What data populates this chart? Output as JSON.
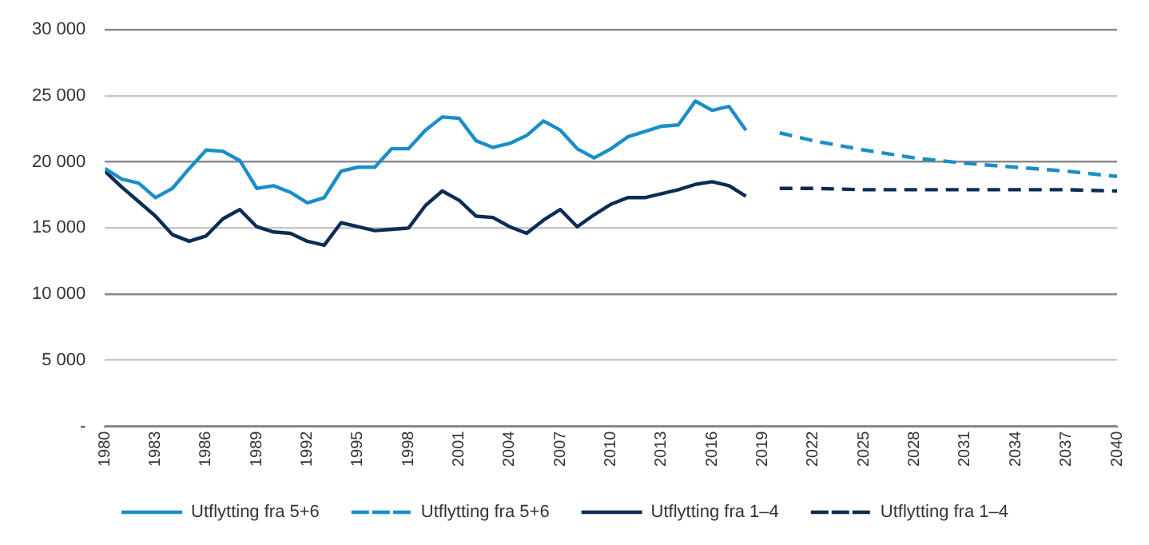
{
  "chart_data": {
    "type": "line",
    "xlim": [
      1980,
      2040
    ],
    "xticks": [
      1980,
      1983,
      1986,
      1989,
      1992,
      1995,
      1998,
      2001,
      2004,
      2007,
      2010,
      2013,
      2016,
      2019,
      2022,
      2025,
      2028,
      2031,
      2034,
      2037,
      2040
    ],
    "ylim": [
      0,
      30000
    ],
    "yticks": [
      {
        "value": 0,
        "label": "-"
      },
      {
        "value": 5000,
        "label": "5 000"
      },
      {
        "value": 10000,
        "label": "10 000"
      },
      {
        "value": 15000,
        "label": "15 000"
      },
      {
        "value": 20000,
        "label": "20 000"
      },
      {
        "value": 25000,
        "label": "25 000"
      },
      {
        "value": 30000,
        "label": "30 000"
      }
    ],
    "grid": "y",
    "legend": "bottom",
    "marker": "none",
    "series": [
      {
        "name": "Utflytting fra 5+6",
        "color": "#1a8ec9",
        "line_style": "solid",
        "x": [
          1980,
          1981,
          1982,
          1983,
          1984,
          1985,
          1986,
          1987,
          1988,
          1989,
          1990,
          1991,
          1992,
          1993,
          1994,
          1995,
          1996,
          1997,
          1998,
          1999,
          2000,
          2001,
          2002,
          2003,
          2004,
          2005,
          2006,
          2007,
          2008,
          2009,
          2010,
          2011,
          2012,
          2013,
          2014,
          2015,
          2016,
          2017,
          2018
        ],
        "values": [
          19500,
          18700,
          18400,
          17300,
          18000,
          19500,
          20900,
          20800,
          20100,
          18000,
          18200,
          17700,
          16900,
          17300,
          19300,
          19600,
          19600,
          21000,
          21000,
          22400,
          23400,
          23300,
          21600,
          21100,
          21400,
          22000,
          23100,
          22400,
          21000,
          20300,
          21000,
          21900,
          22300,
          22700,
          22800,
          24600,
          23900,
          24200,
          22400
        ]
      },
      {
        "name": "Utflytting fra 5+6",
        "color": "#1a8ec9",
        "line_style": "dashed",
        "x": [
          2020,
          2022,
          2025,
          2028,
          2031,
          2034,
          2037,
          2040
        ],
        "values": [
          22200,
          21600,
          20900,
          20300,
          19900,
          19600,
          19300,
          18900
        ]
      },
      {
        "name": "Utflytting fra 1–4",
        "color": "#0b2d55",
        "line_style": "solid",
        "x": [
          1980,
          1981,
          1982,
          1983,
          1984,
          1985,
          1986,
          1987,
          1988,
          1989,
          1990,
          1991,
          1992,
          1993,
          1994,
          1995,
          1996,
          1997,
          1998,
          1999,
          2000,
          2001,
          2002,
          2003,
          2004,
          2005,
          2006,
          2007,
          2008,
          2009,
          2010,
          2011,
          2012,
          2013,
          2014,
          2015,
          2016,
          2017,
          2018
        ],
        "values": [
          19300,
          18100,
          17000,
          15900,
          14500,
          14000,
          14400,
          15700,
          16400,
          15100,
          14700,
          14600,
          14000,
          13700,
          15400,
          15100,
          14800,
          14900,
          15000,
          16700,
          17800,
          17100,
          15900,
          15800,
          15100,
          14600,
          15600,
          16400,
          15100,
          16000,
          16800,
          17300,
          17300,
          17600,
          17900,
          18300,
          18500,
          18200,
          17400
        ]
      },
      {
        "name": "Utflytting fra 1–4",
        "color": "#0b2d55",
        "line_style": "dashed",
        "x": [
          2020,
          2022,
          2025,
          2028,
          2031,
          2034,
          2037,
          2040
        ],
        "values": [
          18000,
          18000,
          17900,
          17900,
          17900,
          17900,
          17900,
          17800
        ]
      }
    ]
  }
}
